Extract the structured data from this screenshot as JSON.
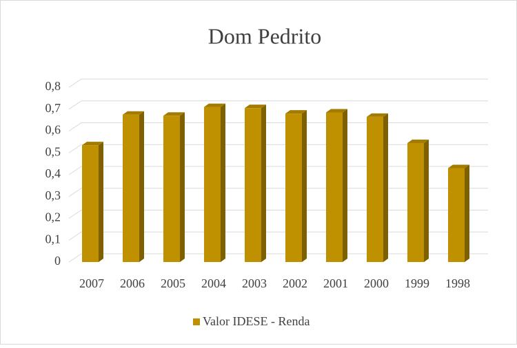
{
  "chart_data": {
    "type": "bar",
    "title": "Dom Pedrito",
    "categories": [
      "2007",
      "2006",
      "2005",
      "2004",
      "2003",
      "2002",
      "2001",
      "2000",
      "1999",
      "1998"
    ],
    "series": [
      {
        "name": "Valor IDESE - Renda",
        "color": "#bf9000",
        "values": [
          0.535,
          0.675,
          0.67,
          0.71,
          0.705,
          0.68,
          0.685,
          0.665,
          0.545,
          0.43
        ]
      }
    ],
    "ylim": [
      0,
      0.8
    ],
    "yticks": [
      0,
      {
        "value": 0.1,
        "label": "0,1"
      },
      {
        "value": 0.2,
        "label": "0,2"
      },
      {
        "value": 0.3,
        "label": "0,3"
      },
      {
        "value": 0.4,
        "label": "0,4"
      },
      {
        "value": 0.5,
        "label": "0,5"
      },
      {
        "value": 0.6,
        "label": "0,6"
      },
      {
        "value": 0.7,
        "label": "0,7"
      },
      {
        "value": 0.8,
        "label": "0,8"
      }
    ],
    "grid": true,
    "legend": "bottom"
  }
}
